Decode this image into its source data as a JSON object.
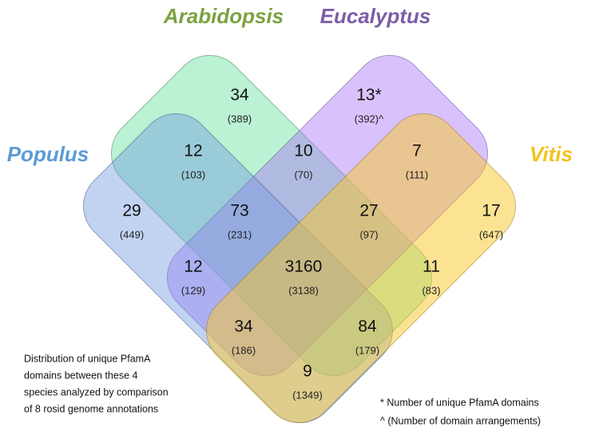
{
  "sets": [
    {
      "label": "Arabidopsis"
    },
    {
      "label": "Eucalyptus"
    },
    {
      "label": "Populus"
    },
    {
      "label": "Vitis"
    }
  ],
  "regions": [
    {
      "count": "34",
      "arrangements": "(389)"
    },
    {
      "count": "13*",
      "arrangements": "(392)^"
    },
    {
      "count": "12",
      "arrangements": "(103)"
    },
    {
      "count": "10",
      "arrangements": "(70)"
    },
    {
      "count": "7",
      "arrangements": "(111)"
    },
    {
      "count": "29",
      "arrangements": "(449)"
    },
    {
      "count": "73",
      "arrangements": "(231)"
    },
    {
      "count": "27",
      "arrangements": "(97)"
    },
    {
      "count": "17",
      "arrangements": "(647)"
    },
    {
      "count": "12",
      "arrangements": "(129)"
    },
    {
      "count": "3160",
      "arrangements": "(3138)"
    },
    {
      "count": "11",
      "arrangements": "(83)"
    },
    {
      "count": "34",
      "arrangements": "(186)"
    },
    {
      "count": "84",
      "arrangements": "(179)"
    },
    {
      "count": "9",
      "arrangements": "(1349)"
    }
  ],
  "description": [
    "Distribution of unique PfamA",
    "domains between these 4",
    "species analyzed by  comparison",
    "of  8 rosid genome annotations"
  ],
  "footnotes": [
    "* Number of unique  PfamA  domains",
    "^ (Number of domain arrangements)"
  ]
}
